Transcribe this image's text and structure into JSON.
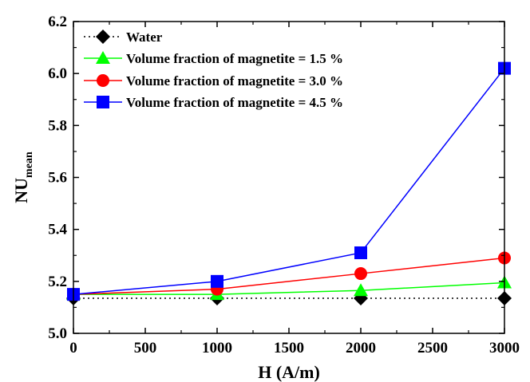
{
  "chart_data": {
    "type": "line",
    "xlabel": "H (A/m)",
    "ylabel_main": "NU",
    "ylabel_sub": "mean",
    "xlim": [
      0,
      3000
    ],
    "ylim": [
      5.0,
      6.2
    ],
    "x_ticks": [
      0,
      500,
      1000,
      1500,
      2000,
      2500,
      3000
    ],
    "x_tick_labels": [
      "0",
      "500",
      "1000",
      "1500",
      "2000",
      "2500",
      "3000"
    ],
    "y_ticks": [
      5.0,
      5.2,
      5.4,
      5.6,
      5.8,
      6.0,
      6.2
    ],
    "y_tick_labels": [
      "5.0",
      "5.2",
      "5.4",
      "5.6",
      "5.8",
      "6.0",
      "6.2"
    ],
    "x": [
      0,
      1000,
      2000,
      3000
    ],
    "grid": false,
    "legend_position": "top-left",
    "series": [
      {
        "name": "Water",
        "values": [
          5.135,
          5.135,
          5.135,
          5.135
        ],
        "color": "#000000",
        "marker": "diamond",
        "line_style": "dotted"
      },
      {
        "name": "Volume fraction of magnetite = 1.5 %",
        "values": [
          5.15,
          5.15,
          5.165,
          5.195
        ],
        "color": "#00ff00",
        "marker": "triangle",
        "line_style": "solid"
      },
      {
        "name": "Volume fraction of magnetite = 3.0 %",
        "values": [
          5.15,
          5.17,
          5.23,
          5.29
        ],
        "color": "#ff0000",
        "marker": "circle",
        "line_style": "solid"
      },
      {
        "name": "Volume fraction of magnetite = 4.5 %",
        "values": [
          5.15,
          5.2,
          5.31,
          6.02
        ],
        "color": "#0000ff",
        "marker": "square",
        "line_style": "solid"
      }
    ]
  }
}
